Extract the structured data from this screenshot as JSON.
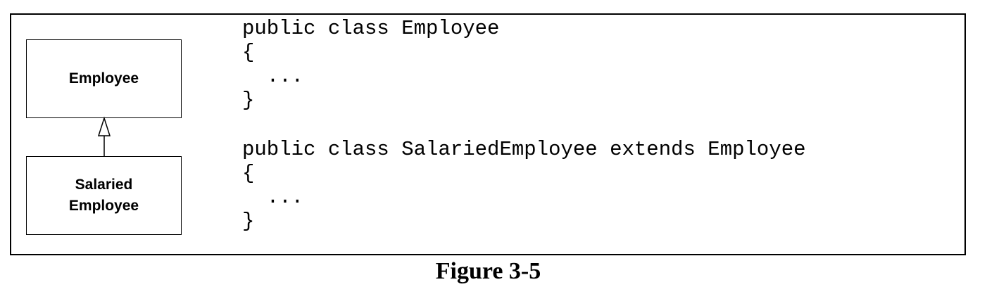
{
  "diagram": {
    "classes": [
      {
        "id": "employee",
        "lines": [
          "Employee"
        ]
      },
      {
        "id": "salaried-employee",
        "lines": [
          "Salaried",
          "Employee"
        ]
      }
    ],
    "relations": [
      {
        "type": "inheritance",
        "from": "salaried-employee",
        "to": "employee"
      }
    ]
  },
  "code": {
    "block1": [
      "public class Employee",
      "{",
      "  ...",
      "}"
    ],
    "block2": [
      "public class SalariedEmployee extends Employee",
      "{",
      "  ...",
      "}"
    ]
  },
  "caption": "Figure 3-5"
}
